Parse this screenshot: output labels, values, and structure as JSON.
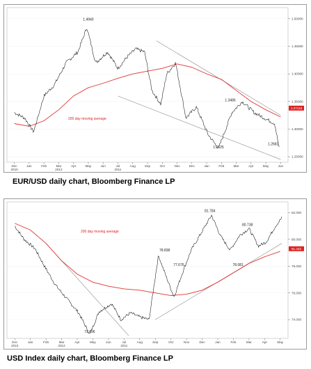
{
  "captions": {
    "eur": "EUR/USD daily chart, Bloomberg Finance LP",
    "usd": "USD Index daily chart, Bloomberg Finance LP"
  },
  "colors": {
    "price": "#111111",
    "moving_average": "#e03030",
    "trendline": "#888888",
    "last_price_box": "#dd2222"
  },
  "chart_data": [
    {
      "type": "line",
      "title": "EUR/USD daily chart, Bloomberg Finance LP",
      "x_tick_labels": [
        "Dec",
        "Jan",
        "Feb",
        "Mar",
        "Apr",
        "May",
        "Jun",
        "Jul",
        "Aug",
        "Sep",
        "Oct",
        "Nov",
        "Dec",
        "Jan",
        "Feb",
        "Mar",
        "Apr",
        "May",
        "Jun"
      ],
      "x_year_labels": [
        {
          "at": "Dec",
          "text": "2010"
        },
        {
          "at": "Jul",
          "text": "2011"
        },
        {
          "at": "Mar",
          "text": "2012"
        }
      ],
      "y_ticks": [
        1.25,
        1.3,
        1.35,
        1.4,
        1.45,
        1.5
      ],
      "y_tick_labels": [
        "1.25000",
        "1.30000",
        "1.35000",
        "1.40000",
        "1.45000",
        "1.50000"
      ],
      "ylim": [
        1.24,
        1.52
      ],
      "series": [
        {
          "x": [
            0,
            0.7,
            1.3,
            2,
            2.7,
            3.5,
            4.3,
            4.9,
            5.5,
            6.3,
            7,
            7.6,
            8.2,
            8.8,
            9.3,
            9.9,
            10.3,
            10.9,
            11.6,
            12.3,
            13.1,
            13.8,
            14.7,
            15.4,
            16.2,
            16.9,
            17.6,
            17.9
          ],
          "y": [
            1.33,
            1.32,
            1.295,
            1.36,
            1.38,
            1.42,
            1.44,
            1.484,
            1.42,
            1.44,
            1.41,
            1.43,
            1.445,
            1.44,
            1.37,
            1.345,
            1.4,
            1.42,
            1.32,
            1.34,
            1.29,
            1.265,
            1.33,
            1.35,
            1.33,
            1.32,
            1.31,
            1.265
          ]
        },
        {
          "name": "200 day moving average",
          "x": [
            0,
            1,
            2,
            3,
            4,
            5,
            6,
            7,
            8,
            9,
            10,
            11,
            12,
            13,
            14,
            15,
            16,
            17,
            18
          ],
          "y": [
            1.31,
            1.305,
            1.315,
            1.335,
            1.36,
            1.375,
            1.383,
            1.392,
            1.4,
            1.405,
            1.41,
            1.418,
            1.412,
            1.4,
            1.39,
            1.37,
            1.35,
            1.335,
            1.322
          ]
        }
      ],
      "trendlines": [
        {
          "x": [
            7.0,
            18.0
          ],
          "y": [
            1.36,
            1.245
          ]
        },
        {
          "x": [
            9.6,
            18.0
          ],
          "y": [
            1.46,
            1.325
          ]
        }
      ],
      "annotations": [
        {
          "text": "1.4940",
          "x": 5.0,
          "y": 1.494
        },
        {
          "text": "1.3486",
          "x": 14.6,
          "y": 1.348
        },
        {
          "text": "1.2625",
          "x": 13.8,
          "y": 1.2625
        },
        {
          "text": "1.2682",
          "x": 17.5,
          "y": 1.2682
        }
      ],
      "ma_label": "200 day moving average",
      "last_price": "1.27116"
    },
    {
      "type": "line",
      "title": "USD Index daily chart, Bloomberg Finance LP",
      "x_tick_labels": [
        "Dec",
        "Jan",
        "Feb",
        "Mar",
        "Apr",
        "May",
        "Jun",
        "Jul",
        "Aug",
        "Sep",
        "Oct",
        "Nov",
        "Dec",
        "Jan",
        "Feb",
        "Mar",
        "Apr",
        "May"
      ],
      "x_year_labels": [
        {
          "at": "Dec",
          "text": "2010"
        },
        {
          "at": "Jul",
          "text": "2011"
        },
        {
          "at": "Mar",
          "text": "2012"
        }
      ],
      "y_ticks": [
        74,
        76,
        78,
        80,
        82
      ],
      "y_tick_labels": [
        "74.000",
        "76.000",
        "78.000",
        "80.000",
        "82.000"
      ],
      "ylim": [
        72.6,
        82.8
      ],
      "series": [
        {
          "x": [
            0,
            0.6,
            1.3,
            1.9,
            2.6,
            3.3,
            4.1,
            4.8,
            5.4,
            6.2,
            6.8,
            7.4,
            8.0,
            8.6,
            9.2,
            9.7,
            10.2,
            10.8,
            11.3,
            12.0,
            12.6,
            13.2,
            13.8,
            14.4,
            15.0,
            15.6,
            16.1,
            16.7,
            17.1
          ],
          "y": [
            81,
            80,
            79.3,
            78,
            76.6,
            75.6,
            74.5,
            72.9,
            74.6,
            75.2,
            74,
            74.5,
            74.2,
            74,
            78.8,
            77.2,
            75.7,
            77.7,
            79.2,
            80.6,
            81.8,
            80.2,
            79.2,
            80.3,
            80.8,
            79.5,
            79.8,
            81.0,
            81.6
          ]
        },
        {
          "name": "200 day moving average",
          "x": [
            0,
            1,
            2,
            3,
            4,
            5,
            6,
            7,
            8,
            9,
            10,
            11,
            12,
            13,
            14,
            15,
            16,
            17
          ],
          "y": [
            81.2,
            80.7,
            79.7,
            78.4,
            77.4,
            76.8,
            76.5,
            76.3,
            76.2,
            76.0,
            75.8,
            75.9,
            76.2,
            76.8,
            77.5,
            78.2,
            78.7,
            79.1
          ]
        }
      ],
      "trendlines": [
        {
          "x": [
            2.0,
            7.3
          ],
          "y": [
            79.7,
            72.8
          ]
        },
        {
          "x": [
            9.0,
            17.1
          ],
          "y": [
            74.0,
            79.7
          ]
        }
      ],
      "annotations": [
        {
          "text": "81.784",
          "x": 12.5,
          "y": 81.95
        },
        {
          "text": "80.738",
          "x": 14.9,
          "y": 80.9
        },
        {
          "text": "78.838",
          "x": 9.6,
          "y": 79.0
        },
        {
          "text": "77.676",
          "x": 10.5,
          "y": 77.9
        },
        {
          "text": "78.081",
          "x": 14.3,
          "y": 77.9
        },
        {
          "text": "72.696",
          "x": 4.8,
          "y": 72.9
        }
      ],
      "ma_label": "200 day moving average",
      "last_price": "81.432"
    }
  ]
}
